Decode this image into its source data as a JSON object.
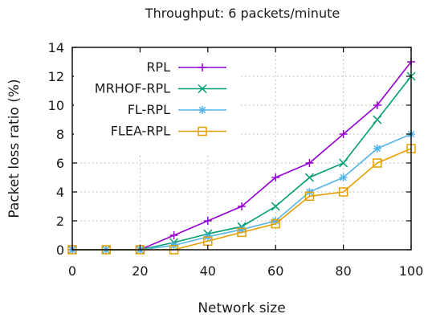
{
  "chart_data": {
    "type": "line",
    "title": "Throughput: 6 packets/minute",
    "xlabel": "Network size",
    "ylabel": "Packet loss ratio (%)",
    "x": [
      0,
      10,
      20,
      30,
      40,
      50,
      60,
      70,
      80,
      90,
      100
    ],
    "xlim": [
      0,
      100
    ],
    "ylim": [
      0,
      14
    ],
    "xticks": [
      0,
      20,
      40,
      60,
      80,
      100
    ],
    "yticks": [
      0,
      2,
      4,
      6,
      8,
      10,
      12,
      14
    ],
    "grid": true,
    "legend_position": "top-left",
    "series": [
      {
        "name": "RPL",
        "color": "#9400d3",
        "marker": "plus",
        "values": [
          0,
          0,
          0,
          1,
          2,
          3,
          5,
          6,
          8,
          10,
          13
        ]
      },
      {
        "name": "MRHOF-RPL",
        "color": "#009e73",
        "marker": "cross",
        "values": [
          0,
          0,
          0,
          0.5,
          1.1,
          1.6,
          3,
          5,
          6,
          9,
          12
        ]
      },
      {
        "name": "FL-RPL",
        "color": "#56b4e9",
        "marker": "star",
        "values": [
          0,
          0,
          0,
          0.3,
          0.9,
          1.4,
          2,
          4,
          5,
          7,
          8
        ]
      },
      {
        "name": "FLEA-RPL",
        "color": "#e69f00",
        "marker": "square",
        "values": [
          0,
          0,
          0,
          0,
          0.6,
          1.2,
          1.8,
          3.7,
          4,
          6,
          7
        ]
      }
    ]
  }
}
